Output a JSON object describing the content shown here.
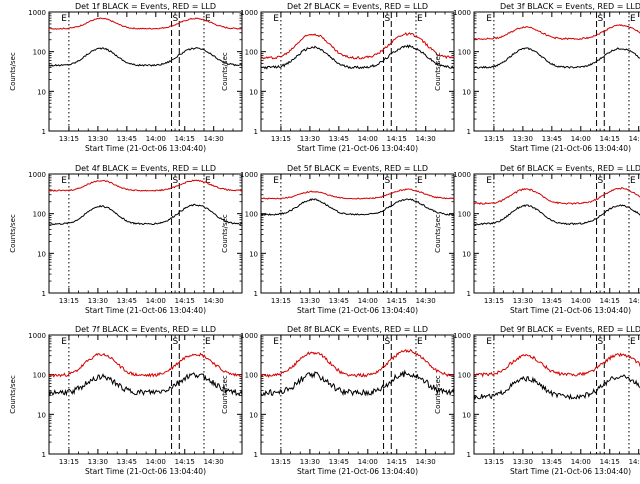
{
  "colors": {
    "events": "#000000",
    "lld": "#d40000",
    "axis": "#000000"
  },
  "shared": {
    "xlabel": "Start Time (21-Oct-06 13:04:40)",
    "ylabel": "Counts/sec",
    "x_tick_labels": [
      "13:15",
      "13:30",
      "13:45",
      "14:00",
      "14:15",
      "14:30"
    ],
    "x_tick_values_min": [
      10.33,
      25.33,
      40.33,
      55.33,
      70.33,
      85.33
    ],
    "y_tick_labels": [
      "1",
      "10",
      "100",
      "1000"
    ],
    "x_range_min": [
      0,
      100
    ],
    "y_range": [
      1,
      1000
    ],
    "y_scale": "log",
    "marker_labels": {
      "E_left": "E",
      "S": "S",
      "E_right": "E"
    },
    "markers_min": {
      "E_left": 10.3,
      "S_left": 63.5,
      "S_right": 67.5,
      "E_right": 80.3
    }
  },
  "chart_data": [
    {
      "type": "line",
      "title": "Det 1f BLACK = Events, RED = LLD",
      "series": [
        {
          "key": "events",
          "base": 45,
          "amp1": 2.7,
          "amp2": 2.7,
          "noise": 0.02
        },
        {
          "key": "lld",
          "base": 380,
          "amp1": 1.8,
          "amp2": 1.8,
          "noise": 0.015
        }
      ]
    },
    {
      "type": "line",
      "title": "Det 2f BLACK = Events, RED = LLD",
      "series": [
        {
          "key": "events",
          "base": 40,
          "amp1": 3.2,
          "amp2": 3.4,
          "noise": 0.03
        },
        {
          "key": "lld",
          "base": 70,
          "amp1": 4.0,
          "amp2": 4.0,
          "noise": 0.03
        }
      ]
    },
    {
      "type": "line",
      "title": "Det 3f BLACK = Events, RED = LLD",
      "series": [
        {
          "key": "events",
          "base": 40,
          "amp1": 3.0,
          "amp2": 3.0,
          "noise": 0.02
        },
        {
          "key": "lld",
          "base": 210,
          "amp1": 2.0,
          "amp2": 2.2,
          "noise": 0.02
        }
      ]
    },
    {
      "type": "line",
      "title": "Det 4f BLACK = Events, RED = LLD",
      "series": [
        {
          "key": "events",
          "base": 55,
          "amp1": 2.8,
          "amp2": 3.0,
          "noise": 0.02
        },
        {
          "key": "lld",
          "base": 380,
          "amp1": 1.8,
          "amp2": 1.8,
          "noise": 0.015
        }
      ]
    },
    {
      "type": "line",
      "title": "Det 5f BLACK = Events, RED = LLD",
      "series": [
        {
          "key": "events",
          "base": 95,
          "amp1": 2.4,
          "amp2": 2.4,
          "noise": 0.02
        },
        {
          "key": "lld",
          "base": 240,
          "amp1": 1.5,
          "amp2": 1.7,
          "noise": 0.015
        }
      ]
    },
    {
      "type": "line",
      "title": "Det 6f BLACK = Events, RED = LLD",
      "series": [
        {
          "key": "events",
          "base": 55,
          "amp1": 2.9,
          "amp2": 2.9,
          "noise": 0.02
        },
        {
          "key": "lld",
          "base": 180,
          "amp1": 2.3,
          "amp2": 2.4,
          "noise": 0.02
        }
      ]
    },
    {
      "type": "line",
      "title": "Det 7f BLACK = Events, RED = LLD",
      "series": [
        {
          "key": "events",
          "base": 35,
          "amp1": 2.5,
          "amp2": 2.8,
          "noise": 0.07
        },
        {
          "key": "lld",
          "base": 95,
          "amp1": 3.4,
          "amp2": 3.5,
          "noise": 0.04
        }
      ]
    },
    {
      "type": "line",
      "title": "Det 8f BLACK = Events, RED = LLD",
      "series": [
        {
          "key": "events",
          "base": 35,
          "amp1": 2.8,
          "amp2": 3.0,
          "noise": 0.08
        },
        {
          "key": "lld",
          "base": 95,
          "amp1": 3.8,
          "amp2": 4.2,
          "noise": 0.04
        }
      ]
    },
    {
      "type": "line",
      "title": "Det 9f BLACK = Events, RED = LLD",
      "series": [
        {
          "key": "events",
          "base": 28,
          "amp1": 2.8,
          "amp2": 3.2,
          "noise": 0.06
        },
        {
          "key": "lld",
          "base": 100,
          "amp1": 3.0,
          "amp2": 3.2,
          "noise": 0.04
        }
      ]
    }
  ]
}
